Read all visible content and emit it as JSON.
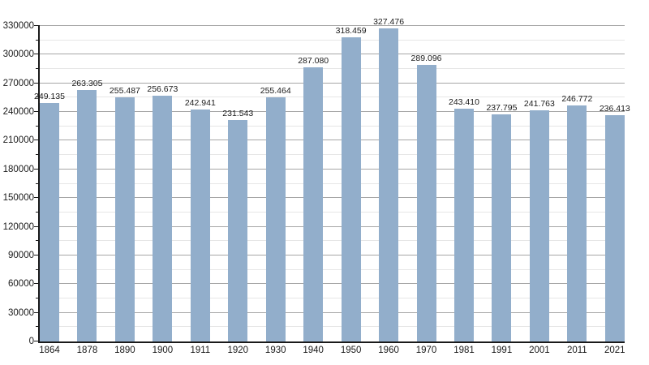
{
  "chart_data": {
    "type": "bar",
    "title": "",
    "xlabel": "",
    "ylabel": "",
    "categories": [
      "1864",
      "1878",
      "1890",
      "1900",
      "1911",
      "1920",
      "1930",
      "1940",
      "1950",
      "1960",
      "1970",
      "1981",
      "1991",
      "2001",
      "2011",
      "2021"
    ],
    "values": [
      249135,
      263305,
      255487,
      256673,
      242941,
      231543,
      255464,
      287080,
      318459,
      327476,
      289096,
      243410,
      237795,
      241763,
      246772,
      236413
    ],
    "value_labels": [
      "249.135",
      "263.305",
      "255.487",
      "256.673",
      "242.941",
      "231.543",
      "255.464",
      "287.080",
      "318.459",
      "327.476",
      "289.096",
      "243.410",
      "237.795",
      "241.763",
      "246.772",
      "236.413"
    ],
    "ylim": [
      0,
      330000
    ],
    "y_major_step": 30000,
    "y_minor_step": 15000,
    "y_tick_labels": [
      "0",
      "30000",
      "60000",
      "90000",
      "120000",
      "150000",
      "180000",
      "210000",
      "240000",
      "270000",
      "300000",
      "330000"
    ],
    "grid": "on",
    "legend": "none",
    "colors": {
      "bar": "#92aecb",
      "major_grid": "#a6a6a6",
      "minor_grid": "#e6e6e6",
      "axis": "#1a1a1a",
      "text": "#1a1a1a",
      "background": "#ffffff"
    }
  }
}
